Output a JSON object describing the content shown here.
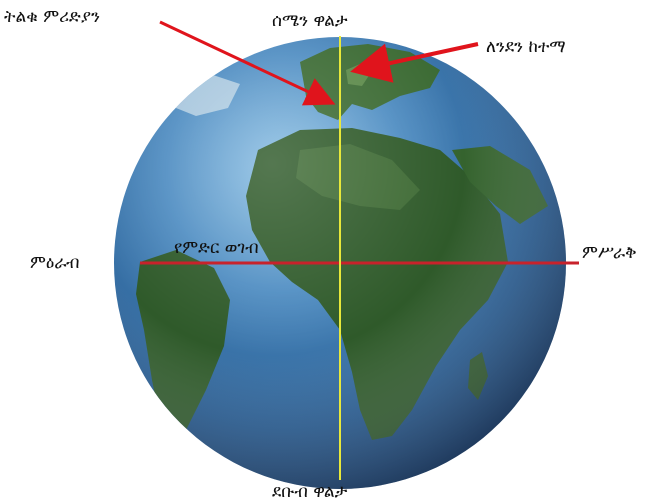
{
  "labels": {
    "prime_meridian": "ትልቁ ምሪድያን",
    "north_pole": "ሰሜን ዋልታ",
    "london": "ለንደን ከተማ",
    "west": "ምዕራብ",
    "equator": "የምድር ወገብ",
    "east": "ምሥራቅ",
    "south_pole": "ደቡብ ዋልታ"
  },
  "colors": {
    "equator_line": "#c8222b",
    "meridian_line": "#e8e83a",
    "arrow": "#e0141c",
    "ocean": "#2f6fa6",
    "land": "#2f5a2a"
  }
}
